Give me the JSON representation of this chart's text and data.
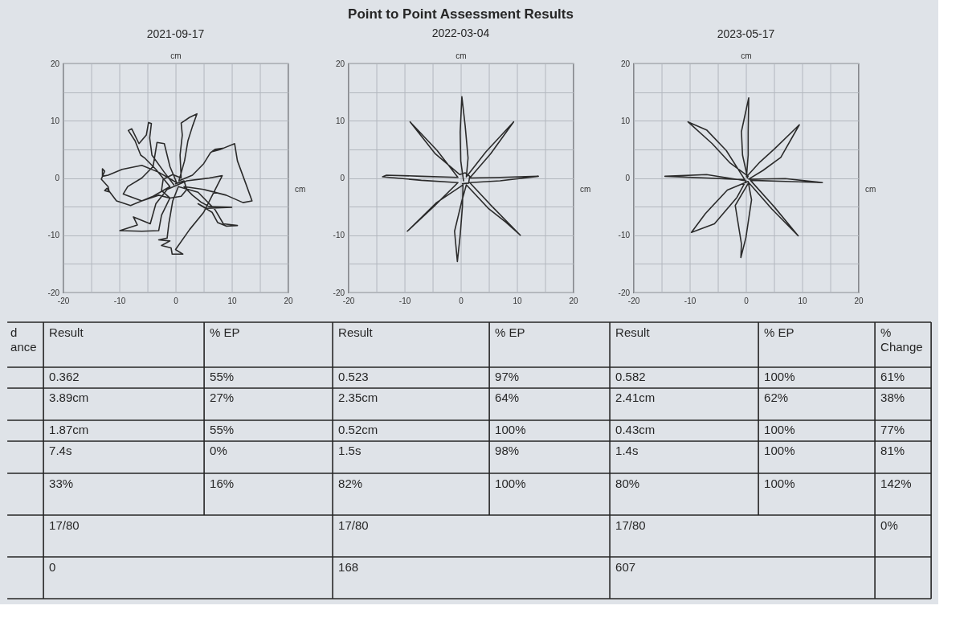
{
  "chart_data": [
    {
      "type": "line",
      "subtitle": "2021-09-17",
      "xlabel": "cm",
      "ylabel": "cm",
      "xlim": [
        -20,
        20
      ],
      "ylim": [
        -20,
        20
      ],
      "xticks": [
        -20,
        {
          "value": -15,
          "label": null
        },
        -10,
        {
          "value": -5,
          "label": null
        },
        0,
        {
          "value": 5,
          "label": null
        },
        10,
        {
          "value": 15,
          "label": null
        },
        20
      ],
      "yticks": [
        -20,
        {
          "value": -15,
          "label": null
        },
        -10,
        {
          "value": -5,
          "label": null
        },
        0,
        {
          "value": 5,
          "label": null
        },
        10,
        {
          "value": 15,
          "label": null
        },
        20
      ],
      "grid": true,
      "line_style": "solid",
      "series": [
        {
          "color": "#2b2b2b",
          "x": [
            0,
            1.5,
            2,
            1,
            -1,
            -2.5,
            -2.2,
            -0.5,
            1,
            0.8,
            1.2,
            1,
            2.5,
            3.8,
            3,
            2.2,
            1.6,
            0.6,
            3,
            5,
            6.2,
            7,
            8.4,
            6.5,
            8,
            10.5,
            11,
            12.5,
            13.6,
            12,
            9,
            5,
            1.5,
            3,
            4.5,
            6,
            10,
            5.5,
            4,
            6.5,
            7.5,
            9,
            11,
            8.5,
            7,
            4,
            0.5,
            -0.5,
            -1.2,
            -1.5,
            -3,
            -1,
            -2.5,
            -0.8,
            -0.6,
            1.3,
            0,
            2.5,
            5,
            8.3,
            6,
            2,
            -1.5,
            -3.5,
            -4.5,
            -7.5,
            -6.8,
            -9.9,
            -6,
            -3,
            -2.5,
            -1,
            -3,
            -6,
            -9.3,
            -8.5,
            -6,
            -4,
            -3.3,
            -2,
            -1,
            0.2,
            -3,
            -6,
            -9.5,
            -12,
            -13,
            -13,
            -12.6,
            -13.2,
            -12,
            -11.8,
            -12.6,
            -12.2,
            -10.5,
            -8,
            -4,
            -1,
            -3.5,
            -5.5,
            -6.2,
            -7.2,
            -8.4,
            -7.8,
            -6.5,
            -5.2,
            -4.8,
            -4.3,
            -4.6,
            -4.2,
            -2,
            -0.3
          ],
          "values": [
            -1,
            -0.5,
            -2,
            -3.2,
            -3.5,
            -2.2,
            -0.2,
            0.6,
            0,
            4,
            7.5,
            9.6,
            10.6,
            11.2,
            9,
            6.5,
            3,
            -0.5,
            0.5,
            2.5,
            4.4,
            5,
            5.2,
            4.6,
            5,
            6,
            3,
            -1,
            -4,
            -4.3,
            -3,
            -2,
            -1.5,
            -3,
            -4.2,
            -5,
            -5.1,
            -5.3,
            -4.5,
            -6,
            -7.8,
            -8.4,
            -8.3,
            -8,
            -5.5,
            -2.5,
            -1.5,
            -4,
            -8,
            -10.5,
            -10.8,
            -11,
            -11.8,
            -12.2,
            -13.3,
            -13.3,
            -12.5,
            -9,
            -6,
            0.4,
            0,
            -0.5,
            -2,
            -4.5,
            -8,
            -6.8,
            -8.2,
            -9.2,
            -9.3,
            -9.2,
            -6.5,
            -3.5,
            -3,
            -4,
            -2.8,
            -1.5,
            0,
            2,
            6.2,
            6,
            2,
            -0.8,
            1,
            2.2,
            1.5,
            0.5,
            0.3,
            1.6,
            1.2,
            -0.2,
            -1.5,
            -2.4,
            -2.2,
            -1.8,
            -4,
            -4.8,
            -3.2,
            -1.5,
            1.5,
            3.5,
            4,
            6.5,
            8.3,
            8.6,
            6,
            7.5,
            9.7,
            9.5,
            7,
            4,
            1,
            -1.2
          ]
        }
      ]
    },
    {
      "type": "line",
      "title": "Point to Point Assessment Results",
      "subtitle": "2022-03-04",
      "xlabel": "cm",
      "ylabel": "cm",
      "xlim": [
        -20,
        20
      ],
      "ylim": [
        -20,
        20
      ],
      "xticks": [
        -20,
        {
          "value": -15,
          "label": null
        },
        -10,
        {
          "value": -5,
          "label": null
        },
        0,
        {
          "value": 5,
          "label": null
        },
        10,
        {
          "value": 15,
          "label": null
        },
        20
      ],
      "yticks": [
        -20,
        {
          "value": -15,
          "label": null
        },
        -10,
        {
          "value": -5,
          "label": null
        },
        0,
        {
          "value": 5,
          "label": null
        },
        10,
        {
          "value": 15,
          "label": null
        },
        20
      ],
      "grid": true,
      "line_style": "solid",
      "series": [
        {
          "color": "#2b2b2b",
          "x": [
            0.5,
            0,
            -0.1,
            0.2,
            0.8,
            1.3,
            1,
            4.5,
            9.4,
            5.3,
            1.6,
            7,
            13.8,
            7,
            1.6,
            5.6,
            10.6,
            8,
            5,
            1,
            0.2,
            -1.1,
            -0.6,
            -0.1,
            0.3,
            0.4,
            -4.3,
            -9.5,
            -4.7,
            -0.5,
            -7,
            -13.9,
            -13.2,
            -7,
            -0.5,
            -4.2,
            -9,
            -4.6,
            -0.2,
            0.8,
            1.6,
            1.4,
            0.3
          ],
          "values": [
            -0.5,
            3,
            8,
            14.2,
            9,
            3.5,
            0.2,
            4.6,
            9.8,
            4.2,
            0,
            0.1,
            0.3,
            -0.5,
            -0.8,
            -5,
            -10,
            -7.7,
            -5.4,
            -1.2,
            -4,
            -9.3,
            -14.6,
            -10,
            -5,
            -1.2,
            -4.3,
            -9.3,
            -4.9,
            -0.8,
            -0.4,
            0.2,
            0.5,
            0.3,
            0.1,
            4.8,
            9.8,
            4.3,
            0.6,
            0.9,
            0.3,
            -0.9,
            -1
          ]
        }
      ]
    },
    {
      "type": "line",
      "subtitle": "2023-05-17",
      "xlabel": "cm",
      "ylabel": "cm",
      "xlim": [
        -20,
        20
      ],
      "ylim": [
        -20,
        20
      ],
      "xticks": [
        -20,
        {
          "value": -15,
          "label": null
        },
        -10,
        {
          "value": -5,
          "label": null
        },
        0,
        {
          "value": 5,
          "label": null
        },
        10,
        {
          "value": 15,
          "label": null
        },
        20
      ],
      "yticks": [
        -20,
        {
          "value": -15,
          "label": null
        },
        -10,
        {
          "value": -5,
          "label": null
        },
        0,
        {
          "value": 5,
          "label": null
        },
        10,
        {
          "value": 15,
          "label": null
        },
        20
      ],
      "grid": true,
      "line_style": "solid",
      "series": [
        {
          "color": "#2b2b2b",
          "x": [
            0.3,
            -0.6,
            -0.8,
            0.5,
            0.4,
            0.4,
            0.1,
            2.5,
            5.1,
            9.5,
            6.2,
            3,
            0.5,
            7,
            13.6,
            7,
            0.8,
            5,
            9.3,
            4.6,
            0.5,
            -1.9,
            -0.8,
            -0.9,
            0,
            1,
            0.4,
            -3.3,
            -7.2,
            -9.7,
            -5.6,
            -1.6,
            0,
            -7,
            -14.4,
            -7,
            -0.2,
            -3.5,
            -7,
            -10.3,
            -6,
            -2.8,
            0.4
          ],
          "values": [
            0,
            4,
            8.1,
            14,
            8,
            4,
            0.2,
            2.8,
            5.1,
            9.3,
            3.6,
            1.3,
            -0.2,
            -0.1,
            -0.8,
            -0.6,
            -0.4,
            -5,
            -10.1,
            -5.4,
            -0.8,
            -4.8,
            -11.5,
            -13.9,
            -10.4,
            -3.8,
            -0.6,
            -2.1,
            -6.2,
            -9.5,
            -8,
            -3.4,
            -0.5,
            0.6,
            0.3,
            0,
            -0.3,
            4.8,
            8.4,
            9.8,
            6,
            2.6,
            0.3
          ]
        }
      ]
    },
    {
      "type": "other",
      "annotations": [
        "d",
        "ance",
        "Result",
        "% EP",
        "Result",
        "% EP",
        "Result",
        "% EP",
        "%",
        "Change",
        "0.362",
        "55%",
        "0.523",
        "97%",
        "0.582",
        "100%",
        "61%",
        "3.89cm",
        "27%",
        "2.35cm",
        "64%",
        "2.41cm",
        "62%",
        "38%",
        "1.87cm",
        "55%",
        "0.52cm",
        "100%",
        "0.43cm",
        "100%",
        "77%",
        "7.4s",
        "0%",
        "1.5s",
        "98%",
        "1.4s",
        "100%",
        "81%",
        "33%",
        "16%",
        "82%",
        "100%",
        "80%",
        "100%",
        "142%",
        "17/80",
        "17/80",
        "17/80",
        "0%",
        "0",
        "168",
        "607"
      ]
    }
  ]
}
